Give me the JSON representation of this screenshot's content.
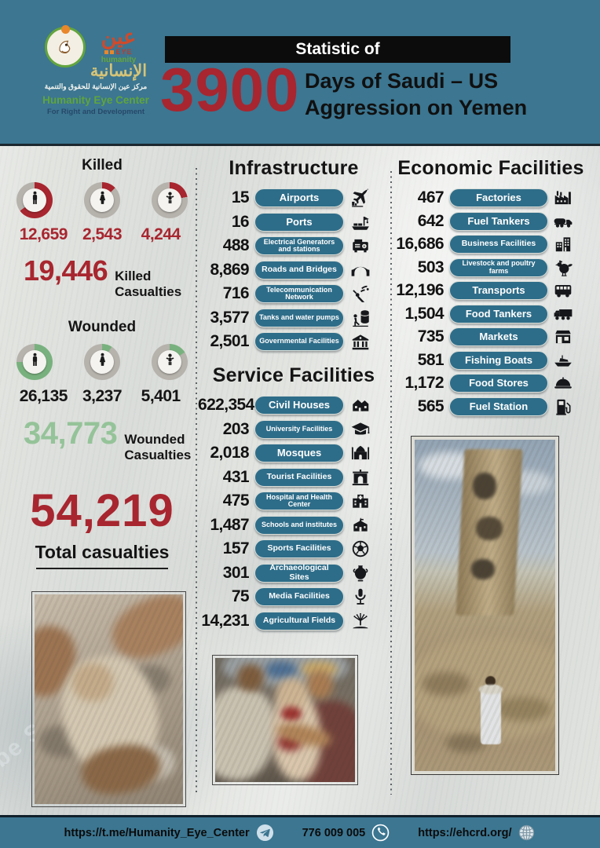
{
  "colors": {
    "teal": "#3c7691",
    "pill": "#2e6d89",
    "red": "#a8262f",
    "green": "#79b17e",
    "green_text": "#95c399",
    "paper": "#e2e4e0"
  },
  "header": {
    "logo": {
      "arabic_word": "عين",
      "eye_label": "EYE",
      "humanity_label": "humanity",
      "arabic_name": "الإنسانية",
      "arabic_line": "مركز عين الإنسانية للحقوق والتنمية",
      "org_name": "Humanity Eye Center",
      "org_tagline": "For Right and Development"
    },
    "banner_label": "Statistic of",
    "days_number": "3900",
    "title_line1": "Days of Saudi – US",
    "title_line2": "Aggression on Yemen"
  },
  "casualties": {
    "killed": {
      "title": "Killed",
      "groups": [
        {
          "icon": "man-icon",
          "value": "12,659",
          "pct": 65
        },
        {
          "icon": "woman-icon",
          "value": "2,543",
          "pct": 13
        },
        {
          "icon": "child-icon",
          "value": "4,244",
          "pct": 22
        }
      ],
      "total": "19,446",
      "total_label": "Killed  Casualties"
    },
    "wounded": {
      "title": "Wounded",
      "groups": [
        {
          "icon": "man-icon",
          "value": "26,135",
          "pct": 75
        },
        {
          "icon": "woman-icon",
          "value": "3,237",
          "pct": 9
        },
        {
          "icon": "child-icon",
          "value": "5,401",
          "pct": 16
        }
      ],
      "total": "34,773",
      "total_label": "Wounded Casualties"
    },
    "grand_total": "54,219",
    "grand_total_label": "Total  casualties"
  },
  "sections": {
    "infrastructure": {
      "title": "Infrastructure",
      "rows": [
        {
          "value": "15",
          "label": "Airports",
          "icon": "airplane-icon"
        },
        {
          "value": "16",
          "label": "Ports",
          "icon": "port-crane-icon"
        },
        {
          "value": "488",
          "label": "Electrical Generators and stations",
          "icon": "generator-icon"
        },
        {
          "value": "8,869",
          "label": "Roads and Bridges",
          "icon": "bridge-icon"
        },
        {
          "value": "716",
          "label": "Telecommunication Network",
          "icon": "antenna-icon"
        },
        {
          "value": "3,577",
          "label": "Tanks and water pumps",
          "icon": "water-tank-icon"
        },
        {
          "value": "2,501",
          "label": "Governmental Facilities",
          "icon": "government-building-icon"
        }
      ]
    },
    "service": {
      "title": "Service Facilities",
      "rows": [
        {
          "value": "622,354",
          "label": "Civil Houses",
          "icon": "house-icon"
        },
        {
          "value": "203",
          "label": "University Facilities",
          "icon": "graduation-cap-icon"
        },
        {
          "value": "2,018",
          "label": "Mosques",
          "icon": "mosque-icon"
        },
        {
          "value": "431",
          "label": "Tourist Facilities",
          "icon": "monument-icon"
        },
        {
          "value": "475",
          "label": "Hospital and Health Center",
          "icon": "hospital-icon"
        },
        {
          "value": "1,487",
          "label": "Schools and institutes",
          "icon": "school-icon"
        },
        {
          "value": "157",
          "label": "Sports Facilities",
          "icon": "soccer-ball-icon"
        },
        {
          "value": "301",
          "label": "Archaeological Sites",
          "icon": "amphora-icon"
        },
        {
          "value": "75",
          "label": "Media Facilities",
          "icon": "microphone-icon"
        },
        {
          "value": "14,231",
          "label": "Agricultural Fields",
          "icon": "field-sprinkler-icon"
        }
      ]
    },
    "economic": {
      "title": "Economic Facilities",
      "rows": [
        {
          "value": "467",
          "label": "Factories",
          "icon": "factory-icon"
        },
        {
          "value": "642",
          "label": "Fuel Tankers",
          "icon": "fuel-tanker-icon"
        },
        {
          "value": "16,686",
          "label": "Business Facilities",
          "icon": "office-building-icon"
        },
        {
          "value": "503",
          "label": "Livestock and poultry farms",
          "icon": "chicken-icon"
        },
        {
          "value": "12,196",
          "label": "Transports",
          "icon": "bus-icon"
        },
        {
          "value": "1,504",
          "label": "Food Tankers",
          "icon": "truck-icon"
        },
        {
          "value": "735",
          "label": "Markets",
          "icon": "market-icon"
        },
        {
          "value": "581",
          "label": "Fishing Boats",
          "icon": "boat-icon"
        },
        {
          "value": "1,172",
          "label": "Food Stores",
          "icon": "food-dish-icon"
        },
        {
          "value": "565",
          "label": "Fuel Station",
          "icon": "fuel-pump-icon"
        }
      ]
    }
  },
  "chart_data": [
    {
      "type": "pie",
      "title": "Killed",
      "categories": [
        "Men",
        "Women",
        "Children"
      ],
      "values": [
        12659,
        2543,
        4244
      ],
      "total": 19446,
      "legend_position": "none"
    },
    {
      "type": "pie",
      "title": "Wounded",
      "categories": [
        "Men",
        "Women",
        "Children"
      ],
      "values": [
        26135,
        3237,
        5401
      ],
      "total": 34773,
      "legend_position": "none"
    }
  ],
  "watermark": "be So",
  "footer": {
    "telegram_label": "https://t.me/Humanity_Eye_Center",
    "phone_label": "776 009 005",
    "website_label": "https://ehcrd.org/"
  }
}
